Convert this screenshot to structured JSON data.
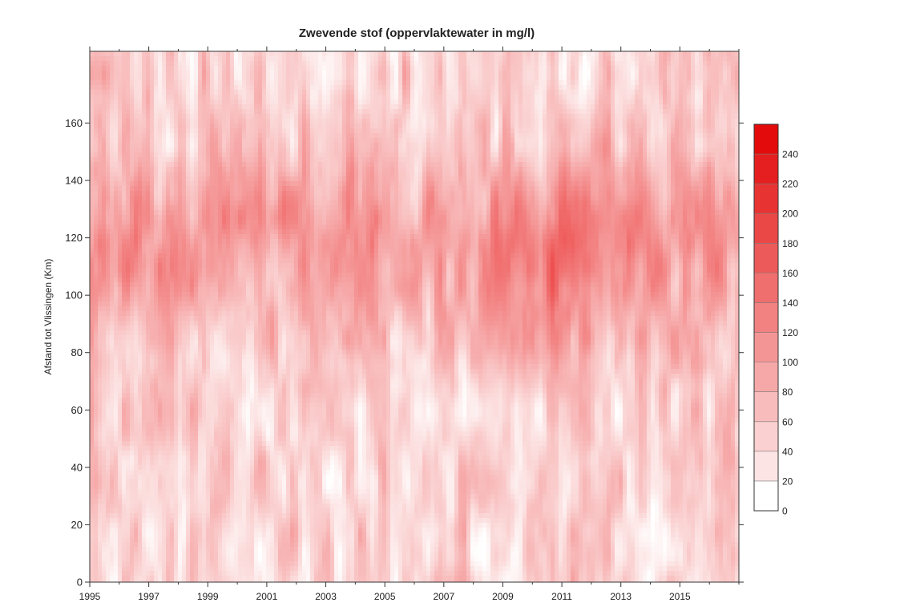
{
  "chart_data": {
    "type": "heatmap",
    "title": "Zwevende stof (oppervlaktewater in mg/l)",
    "xlabel": "",
    "ylabel": "Afstand tot Vlissingen (Km)",
    "xlim": [
      1995,
      2017
    ],
    "ylim": [
      0,
      185
    ],
    "x_tick_labels": [
      "1995",
      "1997",
      "1999",
      "2001",
      "2003",
      "2005",
      "2007",
      "2009",
      "2011",
      "2013",
      "2015"
    ],
    "x_tick_values": [
      1995,
      1997,
      1999,
      2001,
      2003,
      2005,
      2007,
      2009,
      2011,
      2013,
      2015
    ],
    "y_tick_labels": [
      "0",
      "20",
      "40",
      "60",
      "80",
      "100",
      "120",
      "140",
      "160"
    ],
    "y_tick_values": [
      0,
      20,
      40,
      60,
      80,
      100,
      120,
      140,
      160
    ],
    "colorbar": {
      "min": 0,
      "max": 260,
      "levels": [
        0,
        20,
        40,
        60,
        80,
        100,
        120,
        140,
        160,
        180,
        200,
        220,
        240,
        260
      ],
      "tick_labels": [
        "0",
        "20",
        "40",
        "60",
        "80",
        "100",
        "120",
        "140",
        "160",
        "180",
        "200",
        "220",
        "240"
      ],
      "colors": [
        "#ffffff",
        "#fde4e4",
        "#fbd0d0",
        "#f9bcbc",
        "#f6a8a8",
        "#f49595",
        "#f28181",
        "#ef6e6e",
        "#ed5a5a",
        "#ea4747",
        "#e83333",
        "#e51f1f",
        "#e30b0b"
      ]
    },
    "color_high": "#e60000",
    "grid": false,
    "legend": "right"
  }
}
